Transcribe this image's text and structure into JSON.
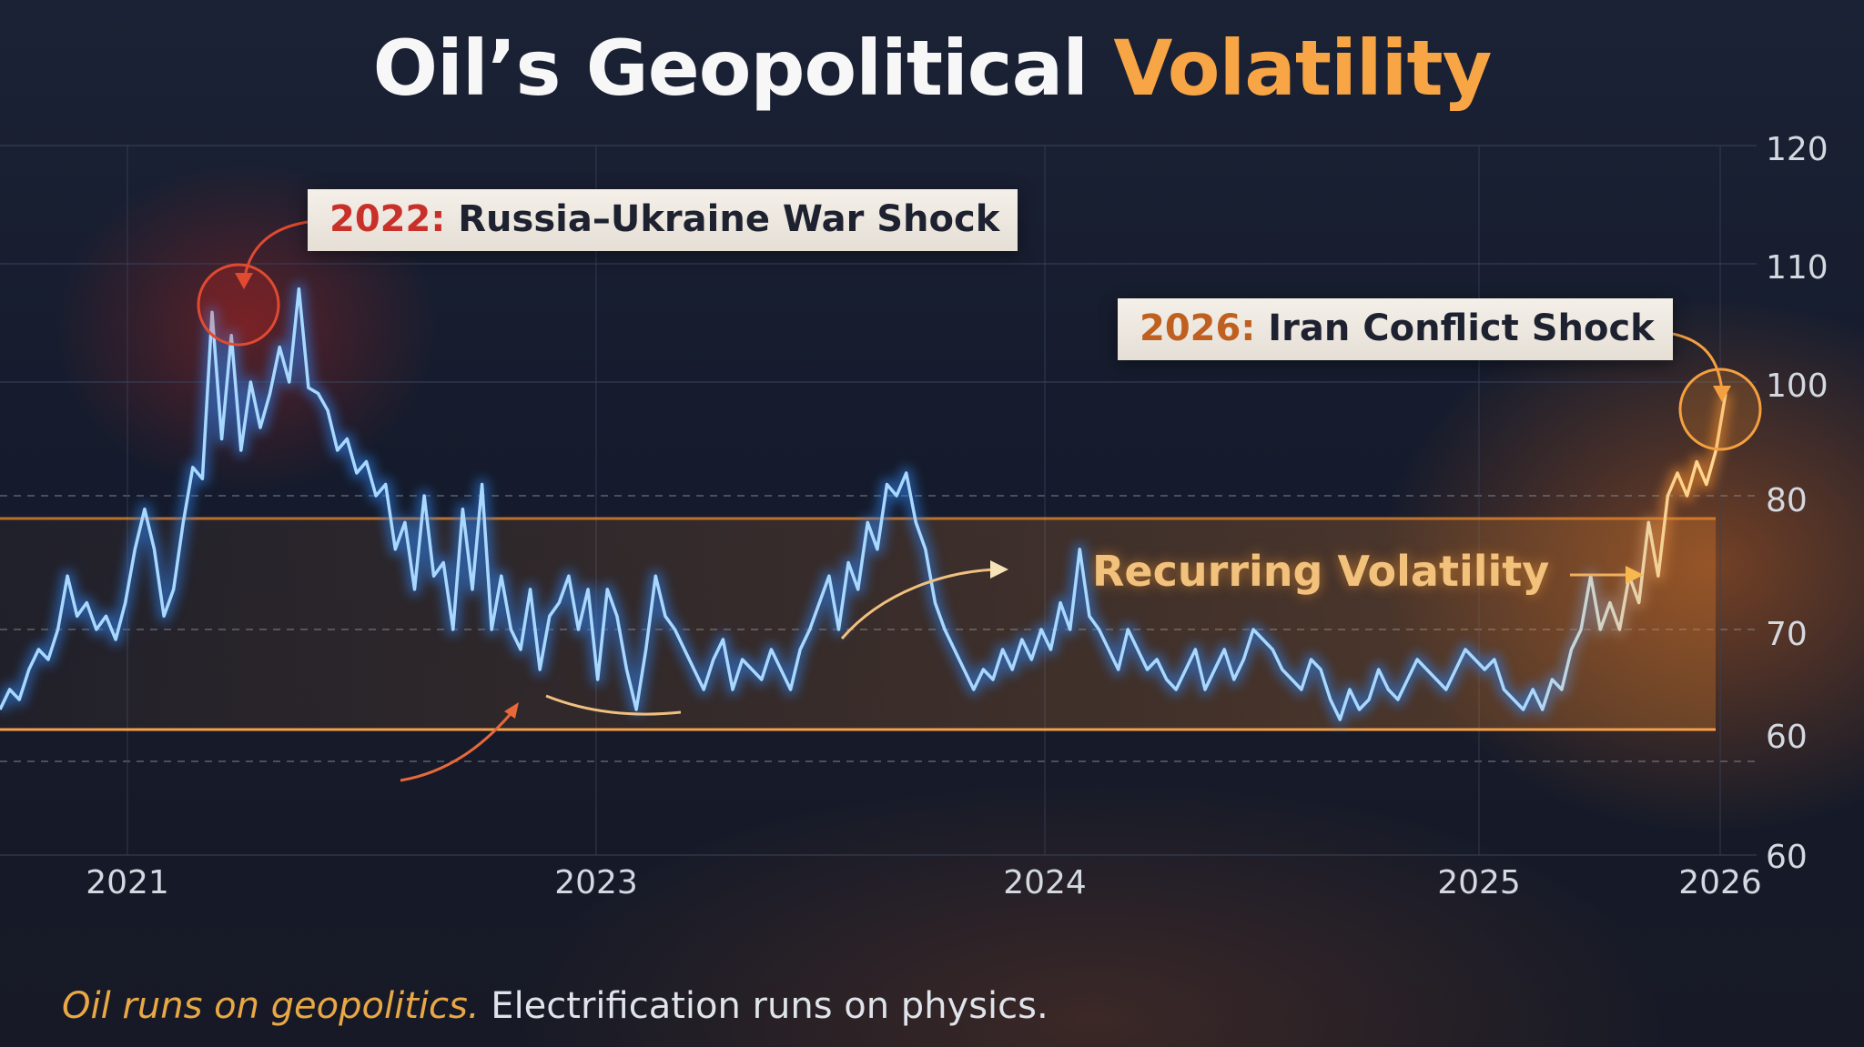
{
  "title": {
    "main": "Oil’s Geopolitical",
    "accent": "Volatility"
  },
  "callouts": {
    "war": {
      "year": "2022:",
      "text": " Russia–Ukraine War Shock"
    },
    "iran": {
      "year": "2026:",
      "text": " Iran Conflict Shock"
    }
  },
  "band_label": "Recurring Volatility",
  "footer": {
    "accent": "Oil runs on geopolitics.",
    "rest": " Electrification runs on physics."
  },
  "colors": {
    "line": "#9fd4ff",
    "line_glow": "#3a8ff0",
    "accent": "#f7a545",
    "war": "#c9302a",
    "band": "#f08a2c"
  },
  "chart_data": {
    "type": "line",
    "title": "Oil’s Geopolitical Volatility",
    "xlabel": "",
    "ylabel": "",
    "x_ticks": [
      "2021",
      "2023",
      "2024",
      "2025",
      "2026"
    ],
    "y_ticks": [
      "60",
      "60",
      "70",
      "80",
      "100",
      "110",
      "120"
    ],
    "grid": true,
    "annotations": [
      "2022: Russia–Ukraine War Shock",
      "2026: Iran Conflict Shock",
      "Recurring Volatility"
    ],
    "series": [
      {
        "values": [
          62,
          64,
          63,
          66,
          68,
          67,
          70,
          74,
          71,
          72,
          70,
          71,
          69,
          72,
          76,
          79,
          76,
          71,
          73,
          78,
          85,
          83,
          106,
          90,
          104,
          88,
          100,
          92,
          98,
          103,
          100,
          108,
          99,
          98,
          95,
          88,
          90,
          84,
          86,
          80,
          82,
          76,
          78,
          73,
          80,
          74,
          75,
          70,
          79,
          73,
          82,
          70,
          74,
          70,
          68,
          73,
          66,
          71,
          72,
          74,
          70,
          73,
          65,
          73,
          71,
          66,
          62,
          68,
          74,
          71,
          70,
          68,
          66,
          64,
          67,
          69,
          64,
          67,
          66,
          65,
          68,
          66,
          64,
          68,
          70,
          72,
          74,
          70,
          75,
          73,
          78,
          76,
          82,
          80,
          84,
          78,
          76,
          72,
          70,
          68,
          66,
          64,
          66,
          65,
          68,
          66,
          69,
          67,
          70,
          68,
          72,
          70,
          76,
          71,
          70,
          68,
          66,
          70,
          68,
          66,
          67,
          65,
          64,
          66,
          68,
          64,
          66,
          68,
          65,
          67,
          70,
          69,
          68,
          66,
          65,
          64,
          67,
          66,
          63,
          61,
          64,
          62,
          63,
          66,
          64,
          63,
          65,
          67,
          66,
          65,
          64,
          66,
          68,
          67,
          66,
          67,
          64,
          63,
          62,
          64,
          62,
          65,
          64,
          68,
          70,
          74,
          70,
          72,
          70,
          74,
          72,
          78,
          74,
          80,
          84,
          80,
          86,
          82,
          88,
          98
        ],
        "note": "approximate values read from the visual"
      }
    ]
  }
}
